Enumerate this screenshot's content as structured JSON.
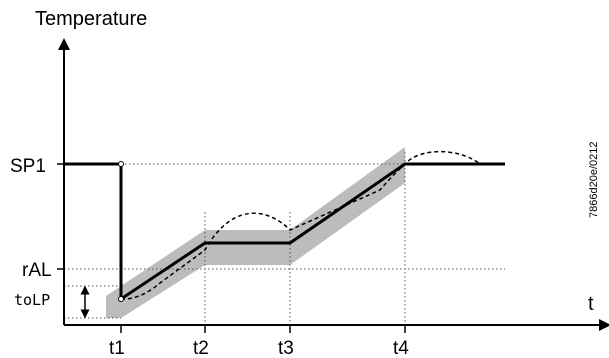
{
  "axes": {
    "y_title": "Temperature",
    "x_title": "t"
  },
  "y_labels": {
    "sp1": "SP1",
    "ral": "rAL",
    "tolp": "toLP"
  },
  "x_labels": [
    "t1",
    "t2",
    "t3",
    "t4"
  ],
  "doc_code": "7866d20e/0212",
  "colors": {
    "band": "#bcbcbc",
    "line": "#000000",
    "guide": "#555555"
  }
}
